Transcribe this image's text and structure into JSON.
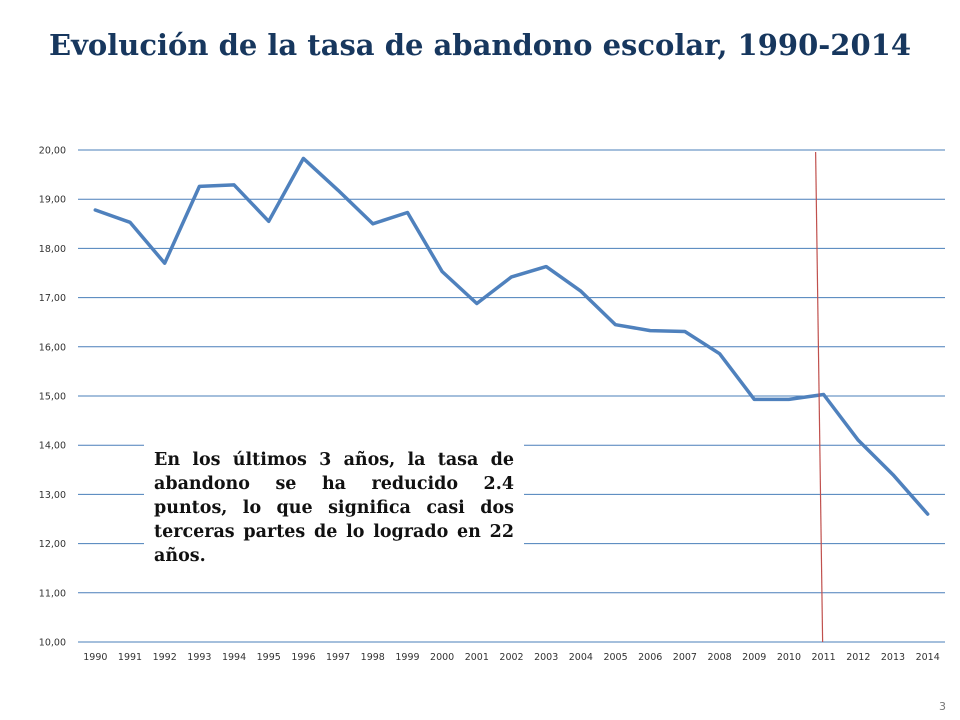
{
  "slide": {
    "title": "Evolución de la tasa de abandono escolar, 1990-2014",
    "note": "En los últimos 3 años, la tasa de abandono se ha reducido 2.4 puntos, lo que significa casi dos terceras partes de lo logrado en 22 años.",
    "page_number": "3"
  },
  "chart_data": {
    "type": "line",
    "title": "",
    "xlabel": "",
    "ylabel": "",
    "categories": [
      "1990",
      "1991",
      "1992",
      "1993",
      "1994",
      "1995",
      "1996",
      "1997",
      "1998",
      "1999",
      "2000",
      "2001",
      "2002",
      "2003",
      "2004",
      "2005",
      "2006",
      "2007",
      "2008",
      "2009",
      "2010",
      "2011",
      "2012",
      "2013",
      "2014"
    ],
    "series": [
      {
        "values": [
          18.78,
          18.53,
          17.7,
          19.26,
          19.29,
          18.55,
          19.83,
          19.18,
          18.5,
          18.73,
          17.53,
          16.88,
          17.42,
          17.63,
          17.13,
          16.45,
          16.33,
          16.31,
          15.86,
          14.93,
          14.93,
          15.03,
          14.1,
          13.4,
          12.6
        ],
        "color": "#4f81bd"
      }
    ],
    "ylim": [
      10,
      20
    ],
    "y_ticks": [
      "10,00",
      "11,00",
      "12,00",
      "13,00",
      "14,00",
      "15,00",
      "16,00",
      "17,00",
      "18,00",
      "19,00",
      "20,00"
    ],
    "grid": true,
    "legend": "none",
    "annotation_line": {
      "x_category": "2011",
      "color": "#c0504d"
    },
    "colors": {
      "gridline": "#4a7fba",
      "series": "#4f81bd",
      "marker_line": "#c0504d"
    }
  }
}
